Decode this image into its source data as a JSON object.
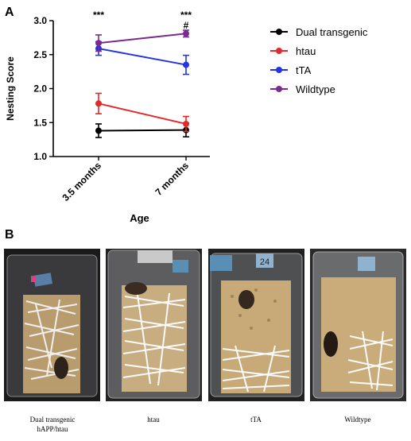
{
  "panels": {
    "a_label": "A",
    "b_label": "B"
  },
  "chart_data": {
    "type": "line",
    "categories": [
      "3.5 months",
      "7 months"
    ],
    "xlabel": "Age",
    "ylabel": "Nesting Score",
    "ylim": [
      1.0,
      3.0
    ],
    "yticks": [
      "1.0",
      "1.5",
      "2.0",
      "2.5",
      "3.0"
    ],
    "grid": false,
    "legend_position": "right",
    "significance": [
      {
        "category": "3.5 months",
        "marks": [
          "***"
        ]
      },
      {
        "category": "7 months",
        "marks": [
          "***",
          "#"
        ]
      }
    ],
    "series": [
      {
        "name": "Dual transgenic",
        "color": "#000000",
        "values": [
          1.38,
          1.39
        ],
        "error": [
          0.1,
          0.1
        ]
      },
      {
        "name": "htau",
        "color": "#e32a2a",
        "values": [
          1.78,
          1.48
        ],
        "error": [
          0.15,
          0.11
        ]
      },
      {
        "name": "tTA",
        "color": "#2334e0",
        "values": [
          2.59,
          2.35
        ],
        "error": [
          0.1,
          0.14
        ]
      },
      {
        "name": "Wildtype",
        "color": "#7b2a8f",
        "values": [
          2.67,
          2.81
        ],
        "error": [
          0.12,
          0.05
        ]
      }
    ]
  },
  "photos": [
    {
      "caption_line1": "Dual transgenic",
      "caption_line2": "hAPP/htau",
      "tag": ""
    },
    {
      "caption_line1": "htau",
      "caption_line2": "",
      "tag": ""
    },
    {
      "caption_line1": "tTA",
      "caption_line2": "",
      "tag": "24"
    },
    {
      "caption_line1": "Wildtype",
      "caption_line2": "",
      "tag": ""
    }
  ]
}
